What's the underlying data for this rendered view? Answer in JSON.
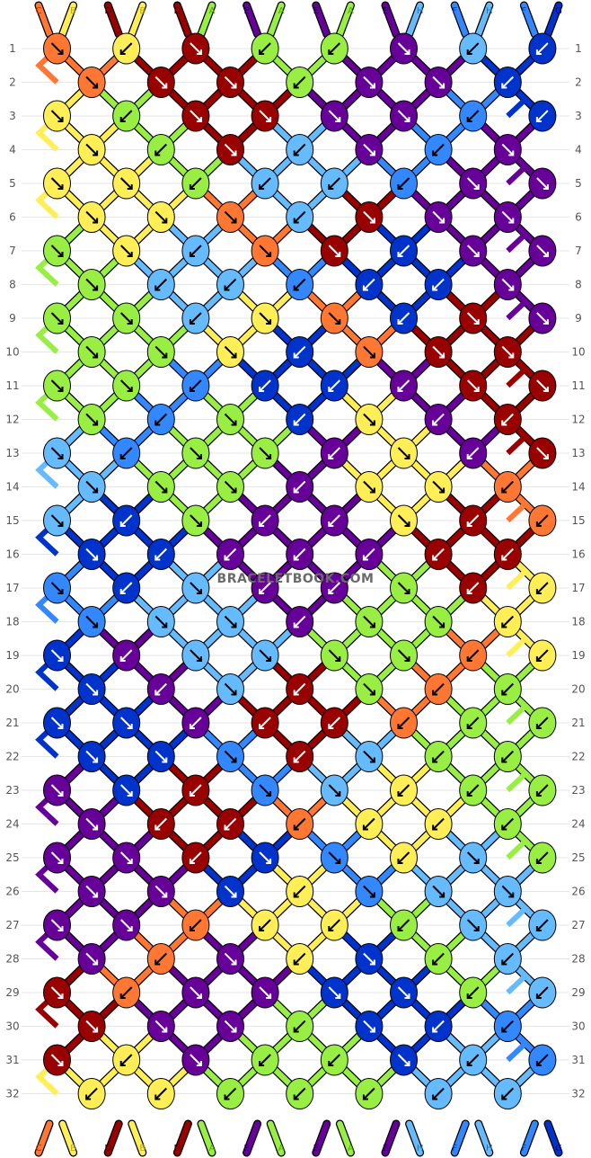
{
  "pattern": {
    "watermark": "BRACELETBOOK.COM",
    "colors": {
      "C": "#ff7733",
      "B": "#ffee55",
      "D": "#990000",
      "A": "#99ee44",
      "E": "#660099",
      "H": "#66bbff",
      "F": "#3388ff",
      "G": "#0033cc"
    },
    "strings_top": [
      "C",
      "B",
      "D",
      "B",
      "D",
      "A",
      "E",
      "A",
      "E",
      "A",
      "E",
      "H",
      "F",
      "H",
      "F",
      "G"
    ],
    "strings_bottom": [
      "C",
      "B",
      "D",
      "B",
      "D",
      "A",
      "E",
      "A",
      "E",
      "A",
      "E",
      "H",
      "F",
      "H",
      "F",
      "G"
    ],
    "rows": [
      "1",
      "2",
      "3",
      "4",
      "5",
      "6",
      "7",
      "8",
      "9",
      "10",
      "11",
      "12",
      "13",
      "14",
      "15",
      "16",
      "17",
      "18",
      "19",
      "20",
      "21",
      "22",
      "23",
      "24",
      "25",
      "26",
      "27",
      "28",
      "29",
      "30",
      "31",
      "32"
    ],
    "knots": [
      [
        [
          "C",
          "r"
        ],
        [
          "B",
          "l"
        ],
        [
          "D",
          "r"
        ],
        [
          "A",
          "l"
        ],
        [
          "A",
          "l"
        ],
        [
          "E",
          "r"
        ],
        [
          "H",
          "l"
        ],
        [
          "G",
          "l"
        ]
      ],
      [
        [
          "C",
          "r"
        ],
        [
          "D",
          "r"
        ],
        [
          "D",
          "r"
        ],
        [
          "A",
          "l"
        ],
        [
          "E",
          "r"
        ],
        [
          "E",
          "r"
        ],
        [
          "G",
          "l"
        ]
      ],
      [
        [
          "B",
          "r"
        ],
        [
          "A",
          "l"
        ],
        [
          "D",
          "r"
        ],
        [
          "D",
          "r"
        ],
        [
          "E",
          "r"
        ],
        [
          "E",
          "r"
        ],
        [
          "F",
          "l"
        ],
        [
          "G",
          "l"
        ]
      ],
      [
        [
          "B",
          "r"
        ],
        [
          "A",
          "l"
        ],
        [
          "D",
          "r"
        ],
        [
          "H",
          "l"
        ],
        [
          "E",
          "r"
        ],
        [
          "F",
          "l"
        ],
        [
          "E",
          "r"
        ]
      ],
      [
        [
          "B",
          "r"
        ],
        [
          "B",
          "r"
        ],
        [
          "A",
          "l"
        ],
        [
          "H",
          "l"
        ],
        [
          "H",
          "l"
        ],
        [
          "F",
          "l"
        ],
        [
          "E",
          "r"
        ],
        [
          "E",
          "r"
        ]
      ],
      [
        [
          "B",
          "r"
        ],
        [
          "B",
          "r"
        ],
        [
          "C",
          "r"
        ],
        [
          "H",
          "l"
        ],
        [
          "D",
          "r"
        ],
        [
          "E",
          "r"
        ],
        [
          "E",
          "r"
        ]
      ],
      [
        [
          "A",
          "r"
        ],
        [
          "B",
          "r"
        ],
        [
          "H",
          "l"
        ],
        [
          "C",
          "r"
        ],
        [
          "D",
          "r"
        ],
        [
          "G",
          "l"
        ],
        [
          "E",
          "r"
        ],
        [
          "E",
          "r"
        ]
      ],
      [
        [
          "A",
          "r"
        ],
        [
          "H",
          "l"
        ],
        [
          "H",
          "l"
        ],
        [
          "F",
          "l"
        ],
        [
          "G",
          "l"
        ],
        [
          "G",
          "l"
        ],
        [
          "E",
          "r"
        ]
      ],
      [
        [
          "A",
          "r"
        ],
        [
          "A",
          "r"
        ],
        [
          "H",
          "l"
        ],
        [
          "B",
          "r"
        ],
        [
          "C",
          "r"
        ],
        [
          "G",
          "l"
        ],
        [
          "D",
          "r"
        ],
        [
          "E",
          "r"
        ]
      ],
      [
        [
          "A",
          "r"
        ],
        [
          "A",
          "r"
        ],
        [
          "B",
          "r"
        ],
        [
          "G",
          "l"
        ],
        [
          "C",
          "r"
        ],
        [
          "D",
          "r"
        ],
        [
          "D",
          "r"
        ]
      ],
      [
        [
          "A",
          "r"
        ],
        [
          "A",
          "r"
        ],
        [
          "F",
          "l"
        ],
        [
          "G",
          "l"
        ],
        [
          "G",
          "l"
        ],
        [
          "E",
          "l"
        ],
        [
          "D",
          "r"
        ],
        [
          "D",
          "r"
        ]
      ],
      [
        [
          "A",
          "r"
        ],
        [
          "F",
          "l"
        ],
        [
          "A",
          "r"
        ],
        [
          "G",
          "l"
        ],
        [
          "B",
          "r"
        ],
        [
          "E",
          "l"
        ],
        [
          "D",
          "l"
        ]
      ],
      [
        [
          "H",
          "r"
        ],
        [
          "F",
          "l"
        ],
        [
          "A",
          "r"
        ],
        [
          "A",
          "r"
        ],
        [
          "E",
          "l"
        ],
        [
          "B",
          "r"
        ],
        [
          "E",
          "l"
        ],
        [
          "D",
          "r"
        ]
      ],
      [
        [
          "H",
          "r"
        ],
        [
          "A",
          "r"
        ],
        [
          "A",
          "r"
        ],
        [
          "E",
          "l"
        ],
        [
          "B",
          "r"
        ],
        [
          "B",
          "r"
        ],
        [
          "C",
          "l"
        ]
      ],
      [
        [
          "H",
          "r"
        ],
        [
          "G",
          "l"
        ],
        [
          "A",
          "r"
        ],
        [
          "E",
          "l"
        ],
        [
          "E",
          "l"
        ],
        [
          "B",
          "r"
        ],
        [
          "D",
          "l"
        ],
        [
          "C",
          "l"
        ]
      ],
      [
        [
          "G",
          "r"
        ],
        [
          "G",
          "l"
        ],
        [
          "E",
          "l"
        ],
        [
          "E",
          "l"
        ],
        [
          "E",
          "l"
        ],
        [
          "D",
          "l"
        ],
        [
          "D",
          "l"
        ]
      ],
      [
        [
          "F",
          "r"
        ],
        [
          "G",
          "l"
        ],
        [
          "H",
          "r"
        ],
        [
          "E",
          "l"
        ],
        [
          "E",
          "l"
        ],
        [
          "A",
          "r"
        ],
        [
          "D",
          "l"
        ],
        [
          "B",
          "l"
        ]
      ],
      [
        [
          "F",
          "r"
        ],
        [
          "H",
          "r"
        ],
        [
          "H",
          "r"
        ],
        [
          "E",
          "l"
        ],
        [
          "A",
          "r"
        ],
        [
          "A",
          "r"
        ],
        [
          "B",
          "l"
        ]
      ],
      [
        [
          "G",
          "r"
        ],
        [
          "E",
          "l"
        ],
        [
          "H",
          "r"
        ],
        [
          "H",
          "r"
        ],
        [
          "A",
          "r"
        ],
        [
          "A",
          "r"
        ],
        [
          "C",
          "l"
        ],
        [
          "B",
          "l"
        ]
      ],
      [
        [
          "G",
          "r"
        ],
        [
          "E",
          "l"
        ],
        [
          "H",
          "r"
        ],
        [
          "D",
          "l"
        ],
        [
          "A",
          "r"
        ],
        [
          "C",
          "l"
        ],
        [
          "A",
          "l"
        ]
      ],
      [
        [
          "G",
          "r"
        ],
        [
          "G",
          "r"
        ],
        [
          "E",
          "l"
        ],
        [
          "D",
          "l"
        ],
        [
          "D",
          "l"
        ],
        [
          "C",
          "l"
        ],
        [
          "A",
          "l"
        ],
        [
          "A",
          "l"
        ]
      ],
      [
        [
          "G",
          "r"
        ],
        [
          "G",
          "r"
        ],
        [
          "F",
          "r"
        ],
        [
          "D",
          "l"
        ],
        [
          "H",
          "r"
        ],
        [
          "A",
          "l"
        ],
        [
          "A",
          "l"
        ]
      ],
      [
        [
          "E",
          "r"
        ],
        [
          "G",
          "r"
        ],
        [
          "D",
          "l"
        ],
        [
          "F",
          "r"
        ],
        [
          "H",
          "r"
        ],
        [
          "B",
          "l"
        ],
        [
          "A",
          "l"
        ],
        [
          "A",
          "l"
        ]
      ],
      [
        [
          "E",
          "r"
        ],
        [
          "D",
          "l"
        ],
        [
          "D",
          "l"
        ],
        [
          "C",
          "l"
        ],
        [
          "B",
          "l"
        ],
        [
          "B",
          "l"
        ],
        [
          "A",
          "l"
        ]
      ],
      [
        [
          "E",
          "r"
        ],
        [
          "E",
          "r"
        ],
        [
          "D",
          "l"
        ],
        [
          "G",
          "r"
        ],
        [
          "F",
          "r"
        ],
        [
          "B",
          "l"
        ],
        [
          "H",
          "r"
        ],
        [
          "A",
          "l"
        ]
      ],
      [
        [
          "E",
          "r"
        ],
        [
          "E",
          "r"
        ],
        [
          "G",
          "r"
        ],
        [
          "B",
          "l"
        ],
        [
          "F",
          "r"
        ],
        [
          "H",
          "r"
        ],
        [
          "H",
          "r"
        ]
      ],
      [
        [
          "E",
          "r"
        ],
        [
          "E",
          "r"
        ],
        [
          "C",
          "l"
        ],
        [
          "B",
          "l"
        ],
        [
          "B",
          "l"
        ],
        [
          "A",
          "l"
        ],
        [
          "H",
          "r"
        ],
        [
          "H",
          "l"
        ]
      ],
      [
        [
          "E",
          "r"
        ],
        [
          "C",
          "l"
        ],
        [
          "E",
          "r"
        ],
        [
          "B",
          "l"
        ],
        [
          "G",
          "r"
        ],
        [
          "A",
          "l"
        ],
        [
          "H",
          "l"
        ]
      ],
      [
        [
          "D",
          "r"
        ],
        [
          "C",
          "l"
        ],
        [
          "E",
          "r"
        ],
        [
          "E",
          "r"
        ],
        [
          "G",
          "r"
        ],
        [
          "G",
          "r"
        ],
        [
          "A",
          "l"
        ],
        [
          "H",
          "l"
        ]
      ],
      [
        [
          "D",
          "r"
        ],
        [
          "E",
          "r"
        ],
        [
          "E",
          "r"
        ],
        [
          "A",
          "l"
        ],
        [
          "G",
          "r"
        ],
        [
          "G",
          "l"
        ],
        [
          "F",
          "l"
        ]
      ],
      [
        [
          "D",
          "r"
        ],
        [
          "B",
          "l"
        ],
        [
          "E",
          "r"
        ],
        [
          "A",
          "l"
        ],
        [
          "A",
          "l"
        ],
        [
          "G",
          "r"
        ],
        [
          "H",
          "l"
        ],
        [
          "F",
          "l"
        ]
      ],
      [
        [
          "B",
          "l"
        ],
        [
          "B",
          "l"
        ],
        [
          "A",
          "l"
        ],
        [
          "A",
          "l"
        ],
        [
          "A",
          "l"
        ],
        [
          "H",
          "l"
        ],
        [
          "H",
          "l"
        ]
      ]
    ]
  }
}
